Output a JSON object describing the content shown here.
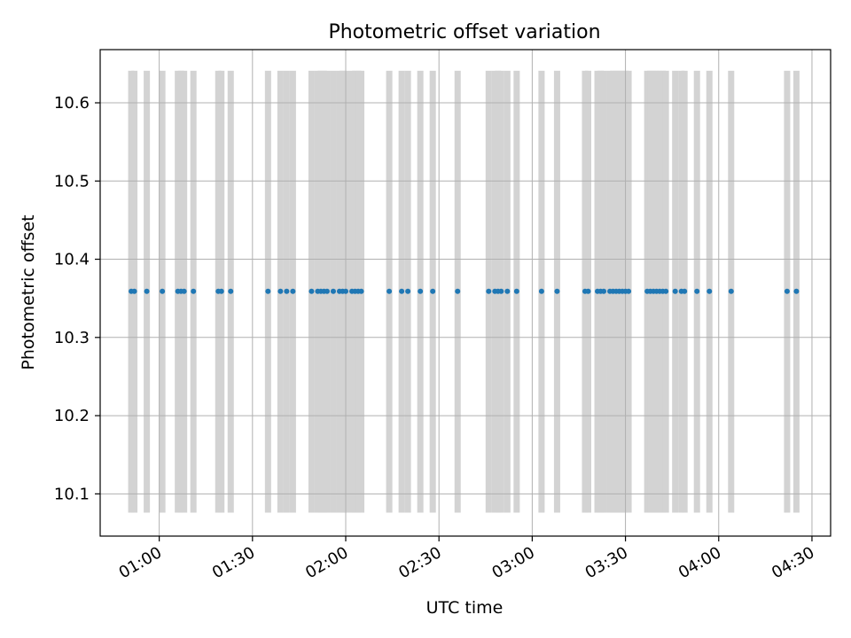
{
  "chart_data": {
    "type": "scatter",
    "title": "Photometric offset variation",
    "xlabel": "UTC time",
    "ylabel": "Photometric offset",
    "grid": true,
    "xlim": [
      "00:41",
      "04:36"
    ],
    "ylim": [
      10.046,
      10.668
    ],
    "x_ticks": [
      "01:00",
      "01:30",
      "02:00",
      "02:30",
      "03:00",
      "03:30",
      "04:00",
      "04:30"
    ],
    "y_ticks": [
      10.1,
      10.2,
      10.3,
      10.4,
      10.5,
      10.6
    ],
    "point_color": "#1f77b4",
    "band_color": "#d3d3d3",
    "bands": {
      "y_range": [
        10.076,
        10.641
      ],
      "half_width_minutes": 1.0,
      "x": [
        "00:51",
        "00:52",
        "00:56",
        "01:01",
        "01:06",
        "01:07",
        "01:08",
        "01:11",
        "01:19",
        "01:20",
        "01:23",
        "01:35",
        "01:39",
        "01:41",
        "01:43",
        "01:49",
        "01:51",
        "01:52",
        "01:53",
        "01:54",
        "01:56",
        "01:58",
        "01:59",
        "02:00",
        "02:02",
        "02:03",
        "02:04",
        "02:05",
        "02:14",
        "02:18",
        "02:20",
        "02:24",
        "02:28",
        "02:36",
        "02:46",
        "02:48",
        "02:49",
        "02:50",
        "02:52",
        "02:55",
        "03:03",
        "03:08",
        "03:17",
        "03:18",
        "03:21",
        "03:22",
        "03:23",
        "03:25",
        "03:26",
        "03:27",
        "03:28",
        "03:29",
        "03:30",
        "03:31",
        "03:37",
        "03:38",
        "03:39",
        "03:40",
        "03:41",
        "03:42",
        "03:43",
        "03:46",
        "03:48",
        "03:49",
        "03:53",
        "03:57",
        "04:04",
        "04:22",
        "04:25"
      ]
    },
    "series": [
      {
        "x": [
          "00:51",
          "00:52",
          "00:56",
          "01:01",
          "01:06",
          "01:07",
          "01:08",
          "01:11",
          "01:19",
          "01:20",
          "01:23",
          "01:35",
          "01:39",
          "01:41",
          "01:43",
          "01:49",
          "01:51",
          "01:52",
          "01:53",
          "01:54",
          "01:56",
          "01:58",
          "01:59",
          "02:00",
          "02:02",
          "02:03",
          "02:04",
          "02:05",
          "02:14",
          "02:18",
          "02:20",
          "02:24",
          "02:28",
          "02:36",
          "02:46",
          "02:48",
          "02:49",
          "02:50",
          "02:52",
          "02:55",
          "03:03",
          "03:08",
          "03:17",
          "03:18",
          "03:21",
          "03:22",
          "03:23",
          "03:25",
          "03:26",
          "03:27",
          "03:28",
          "03:29",
          "03:30",
          "03:31",
          "03:37",
          "03:38",
          "03:39",
          "03:40",
          "03:41",
          "03:42",
          "03:43",
          "03:46",
          "03:48",
          "03:49",
          "03:53",
          "03:57",
          "04:04",
          "04:22",
          "04:25"
        ],
        "y": [
          10.359,
          10.359,
          10.359,
          10.359,
          10.359,
          10.359,
          10.359,
          10.359,
          10.359,
          10.359,
          10.359,
          10.359,
          10.359,
          10.359,
          10.359,
          10.359,
          10.359,
          10.359,
          10.359,
          10.359,
          10.359,
          10.359,
          10.359,
          10.359,
          10.359,
          10.359,
          10.359,
          10.359,
          10.359,
          10.359,
          10.359,
          10.359,
          10.359,
          10.359,
          10.359,
          10.359,
          10.359,
          10.359,
          10.359,
          10.359,
          10.359,
          10.359,
          10.359,
          10.359,
          10.359,
          10.359,
          10.359,
          10.359,
          10.359,
          10.359,
          10.359,
          10.359,
          10.359,
          10.359,
          10.359,
          10.359,
          10.359,
          10.359,
          10.359,
          10.359,
          10.359,
          10.359,
          10.359,
          10.359,
          10.359,
          10.359,
          10.359,
          10.359,
          10.359
        ]
      }
    ]
  }
}
